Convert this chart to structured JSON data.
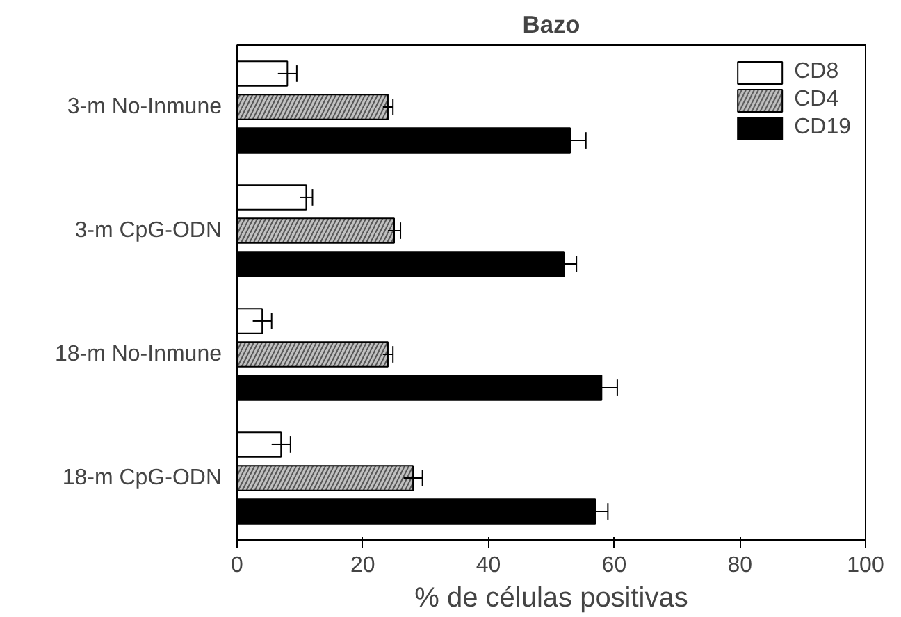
{
  "chart_data": {
    "type": "bar",
    "orientation": "horizontal",
    "title": "Bazo",
    "xlabel": "% de células positivas",
    "categories": [
      "3-m No-Inmune",
      "3-m CpG-ODN",
      "18-m No-Inmune",
      "18-m CpG-ODN"
    ],
    "series": [
      {
        "name": "CD8",
        "color": "#ffffff",
        "values": [
          8,
          11,
          4,
          7
        ],
        "errors": [
          1.5,
          1,
          1.5,
          1.5
        ]
      },
      {
        "name": "CD4",
        "color": "#c0c0c0",
        "values": [
          24,
          25,
          24,
          28
        ],
        "errors": [
          0.8,
          1,
          0.8,
          1.5
        ]
      },
      {
        "name": "CD19",
        "color": "#000000",
        "values": [
          53,
          52,
          58,
          57
        ],
        "errors": [
          2.5,
          2,
          2.5,
          2
        ]
      }
    ],
    "xlim": [
      0,
      100
    ],
    "xticks": [
      0,
      20,
      40,
      60,
      80,
      100
    ],
    "grid": false,
    "legend": "top right"
  }
}
